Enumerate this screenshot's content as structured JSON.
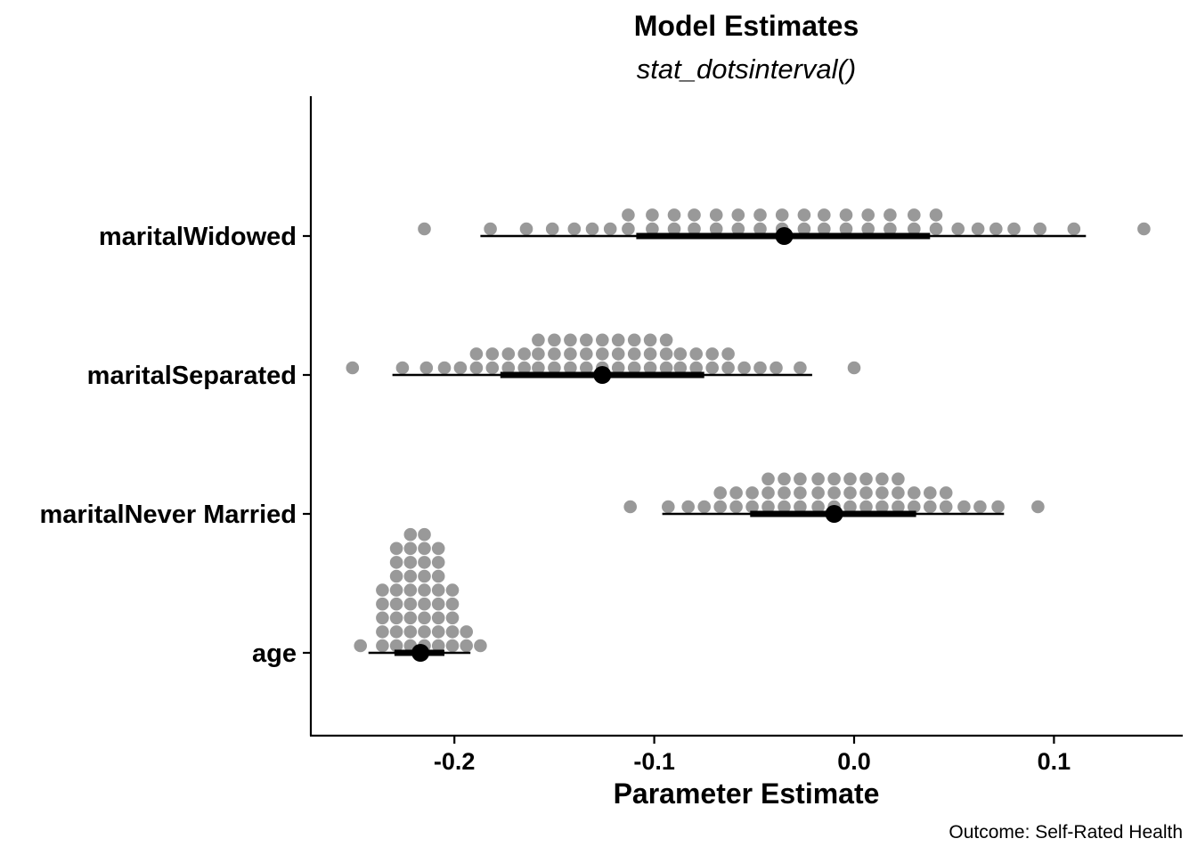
{
  "chart_data": {
    "type": "dotsinterval",
    "title": "Model Estimates",
    "subtitle": "stat_dotsinterval()",
    "xlabel": "Parameter Estimate",
    "caption": "Outcome: Self-Rated Health",
    "xlim": [
      -0.27,
      0.165
    ],
    "xticks": [
      -0.2,
      -0.1,
      0.0,
      0.1
    ],
    "xtick_labels": [
      "-0.2",
      "-0.1",
      "0.0",
      "0.1"
    ],
    "grid": false,
    "dot_color": "#999999",
    "interval_color": "#000000",
    "categories": [
      "maritalWidowed",
      "maritalSeparated",
      "maritalNever Married",
      "age"
    ],
    "series": [
      {
        "category": "maritalWidowed",
        "point": -0.035,
        "interval_66": [
          -0.109,
          0.038
        ],
        "interval_95": [
          -0.187,
          0.116
        ],
        "dots": [
          [
            -0.215,
            0.145,
            -0.182,
            -0.164,
            -0.151,
            -0.14,
            -0.131,
            -0.122,
            -0.113,
            -0.101,
            -0.09,
            -0.08,
            -0.069,
            -0.058,
            -0.047,
            -0.036,
            -0.025,
            -0.015,
            -0.004,
            0.007,
            0.018,
            0.03,
            0.041,
            0.052,
            0.062,
            0.071,
            0.08,
            0.093,
            0.11
          ],
          [
            -0.113,
            -0.101,
            -0.09,
            -0.08,
            -0.069,
            -0.058,
            -0.047,
            -0.036,
            -0.025,
            -0.015,
            -0.004,
            0.007,
            0.018,
            0.03,
            0.041
          ]
        ]
      },
      {
        "category": "maritalSeparated",
        "point": -0.126,
        "interval_66": [
          -0.177,
          -0.075
        ],
        "interval_95": [
          -0.231,
          -0.021
        ],
        "dots": [
          [
            -0.251,
            -0.226,
            -0.214,
            -0.205,
            -0.197,
            -0.189,
            -0.181,
            -0.173,
            -0.165,
            -0.158,
            -0.15,
            -0.142,
            -0.134,
            -0.126,
            -0.118,
            -0.11,
            -0.102,
            -0.094,
            -0.087,
            -0.079,
            -0.071,
            -0.063,
            -0.055,
            -0.047,
            -0.039,
            -0.027,
            0.0
          ],
          [
            -0.189,
            -0.181,
            -0.173,
            -0.165,
            -0.158,
            -0.15,
            -0.142,
            -0.134,
            -0.126,
            -0.118,
            -0.11,
            -0.102,
            -0.094,
            -0.087,
            -0.079,
            -0.071,
            -0.063
          ],
          [
            -0.158,
            -0.15,
            -0.142,
            -0.134,
            -0.126,
            -0.118,
            -0.11,
            -0.102,
            -0.094
          ]
        ]
      },
      {
        "category": "maritalNever Married",
        "point": -0.01,
        "interval_66": [
          -0.052,
          0.031
        ],
        "interval_95": [
          -0.096,
          0.075
        ],
        "dots": [
          [
            -0.112,
            -0.093,
            -0.083,
            -0.075,
            -0.067,
            -0.059,
            -0.051,
            -0.043,
            -0.035,
            -0.027,
            -0.018,
            -0.01,
            -0.002,
            0.006,
            0.014,
            0.022,
            0.03,
            0.038,
            0.046,
            0.055,
            0.063,
            0.072,
            0.092
          ],
          [
            -0.067,
            -0.059,
            -0.051,
            -0.043,
            -0.035,
            -0.027,
            -0.018,
            -0.01,
            -0.002,
            0.006,
            0.014,
            0.022,
            0.03,
            0.038,
            0.046
          ],
          [
            -0.043,
            -0.035,
            -0.027,
            -0.018,
            -0.01,
            -0.002,
            0.006,
            0.014,
            0.022
          ]
        ]
      },
      {
        "category": "age",
        "point": -0.217,
        "interval_66": [
          -0.23,
          -0.205
        ],
        "interval_95": [
          -0.243,
          -0.192
        ],
        "dots": [
          [
            -0.247,
            -0.236,
            -0.229,
            -0.222,
            -0.215,
            -0.208,
            -0.201,
            -0.194,
            -0.187
          ],
          [
            -0.236,
            -0.229,
            -0.222,
            -0.215,
            -0.208,
            -0.201,
            -0.194
          ],
          [
            -0.236,
            -0.229,
            -0.222,
            -0.215,
            -0.208,
            -0.201
          ],
          [
            -0.236,
            -0.229,
            -0.222,
            -0.215,
            -0.208,
            -0.201
          ],
          [
            -0.236,
            -0.229,
            -0.222,
            -0.215,
            -0.208,
            -0.201
          ],
          [
            -0.229,
            -0.222,
            -0.215,
            -0.208
          ],
          [
            -0.229,
            -0.222,
            -0.215,
            -0.208
          ],
          [
            -0.229,
            -0.222,
            -0.215,
            -0.208
          ],
          [
            -0.222,
            -0.215
          ]
        ]
      }
    ]
  }
}
